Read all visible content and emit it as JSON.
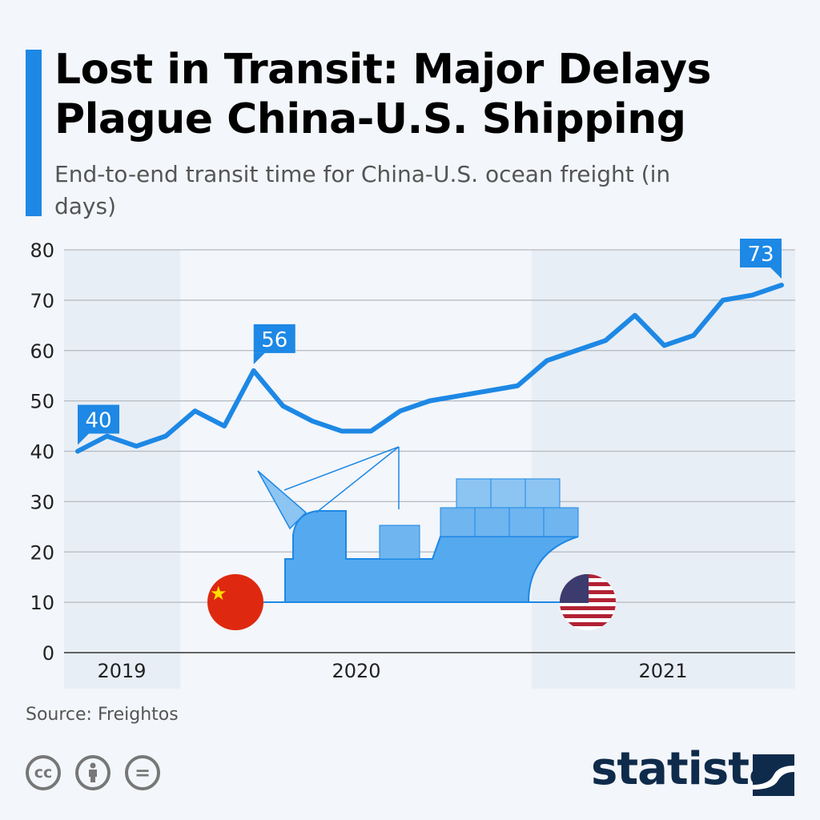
{
  "header": {
    "title": "Lost in Transit: Major Delays Plague China-U.S. Shipping",
    "subtitle": "End-to-end transit time for China-U.S. ocean freight (in days)"
  },
  "chart_data": {
    "type": "line",
    "title": "Lost in Transit: Major Delays Plague China-U.S. Shipping",
    "subtitle": "End-to-end transit time for China-U.S. ocean freight (in days)",
    "xlabel": "",
    "ylabel": "",
    "ylim": [
      0,
      80
    ],
    "yticks": [
      0,
      10,
      20,
      30,
      40,
      50,
      60,
      70,
      80
    ],
    "year_labels": [
      "2019",
      "2020",
      "2021"
    ],
    "grid": true,
    "series": [
      {
        "values": [
          40,
          43,
          41,
          43,
          48,
          45,
          56,
          49,
          46,
          44,
          44,
          48,
          50,
          51,
          52,
          53,
          58,
          60,
          62,
          67,
          61,
          63,
          70,
          71,
          73
        ]
      }
    ],
    "annotations": [
      {
        "index": 0,
        "label": "40"
      },
      {
        "index": 6,
        "label": "56"
      },
      {
        "index": 24,
        "label": "73"
      }
    ],
    "colors": {
      "line": "#1d88e5",
      "band": "#e8eef5"
    }
  },
  "footer": {
    "source": "Source: Freightos",
    "brand": "statista",
    "cc_icons": [
      "cc-icon",
      "attribution-icon",
      "no-derivatives-icon"
    ],
    "cc_labels": [
      "cc",
      "=",
      ""
    ]
  }
}
